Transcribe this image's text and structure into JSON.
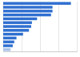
{
  "chart_data": {
    "type": "bar",
    "orientation": "horizontal",
    "categories": [
      null,
      null,
      null,
      null,
      null,
      null,
      null,
      null,
      null,
      null,
      null,
      null,
      null
    ],
    "values": [
      92,
      67,
      67,
      65,
      46,
      39,
      38,
      35,
      27,
      18,
      15,
      13,
      10
    ],
    "colors": [
      "#2f6fd0",
      "#2f6fd0",
      "#2f6fd0",
      "#2f6fd0",
      "#2f6fd0",
      "#2f6fd0",
      "#2f6fd0",
      "#2f6fd0",
      "#2f6fd0",
      "#2f6fd0",
      "#2f6fd0",
      "#2f6fd0",
      "#a9c3ea"
    ],
    "xlim": [
      0,
      100
    ],
    "xticks": [
      0,
      25,
      50,
      75,
      100
    ],
    "grid": true,
    "tick_labels": false
  }
}
